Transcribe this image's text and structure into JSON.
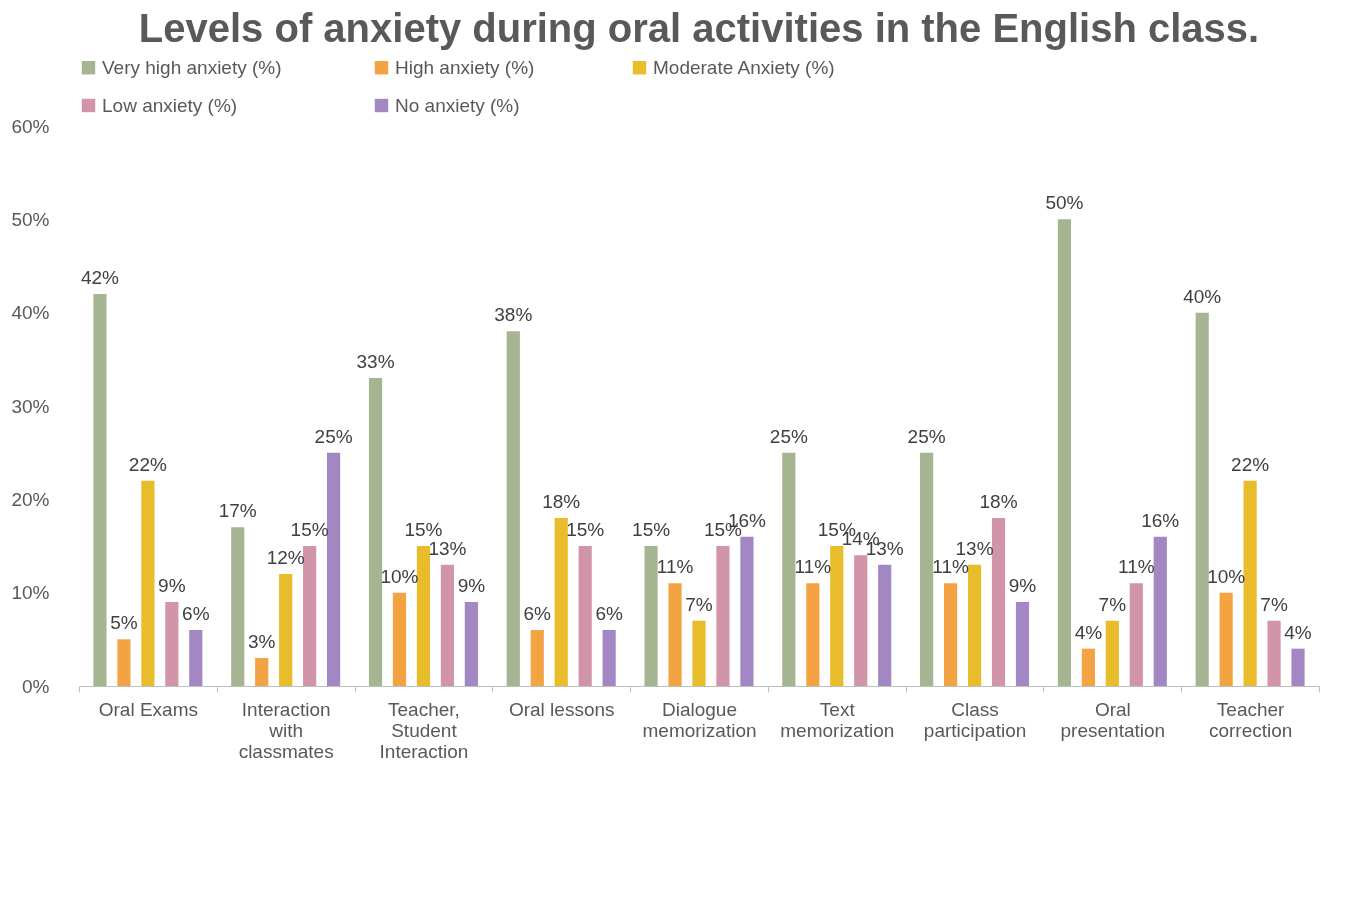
{
  "chart_data": {
    "type": "bar",
    "title": "Levels of anxiety during oral activities in the English class.",
    "categories": [
      "Oral Exams",
      "Interaction with classmates",
      "Teacher, Student Interaction",
      "Oral lessons",
      "Dialogue memorization",
      "Text memorization",
      "Class participation",
      "Oral presentation",
      "Teacher correction"
    ],
    "series": [
      {
        "name": "Very high anxiety (%)",
        "color": "#a5b592",
        "values": [
          42,
          17,
          33,
          38,
          15,
          25,
          25,
          50,
          40
        ],
        "value_labels": [
          "42%",
          "17%",
          "33%",
          "38%",
          "15%",
          "25%",
          "25%",
          "50%",
          "40%"
        ]
      },
      {
        "name": "High  anxiety (%)",
        "color": "#f4a343",
        "values": [
          5,
          3,
          10,
          6,
          11,
          11,
          11,
          4,
          10
        ],
        "value_labels": [
          "5%",
          "3%",
          "10%",
          "6%",
          "11%",
          "11%",
          "11%",
          "4%",
          "10%"
        ]
      },
      {
        "name": "Moderate Anxiety (%)",
        "color": "#e8bc2a",
        "values": [
          22,
          12,
          15,
          18,
          7,
          15,
          13,
          7,
          22
        ],
        "value_labels": [
          "22%",
          "12%",
          "15%",
          "18%",
          "7%",
          "15%",
          "13%",
          "7%",
          "22%"
        ]
      },
      {
        "name": "Low anxiety (%)",
        "color": "#d295a8",
        "values": [
          9,
          15,
          13,
          15,
          15,
          14,
          18,
          11,
          7
        ],
        "value_labels": [
          "9%",
          "15%",
          "13%",
          "15%",
          "15%",
          "14%",
          "18%",
          "11%",
          "7%"
        ]
      },
      {
        "name": "No anxiety (%)",
        "color": "#a387c3",
        "values": [
          6,
          25,
          9,
          6,
          16,
          13,
          9,
          16,
          4
        ],
        "value_labels": [
          "6%",
          "25%",
          "9%",
          "6%",
          "16%",
          "13%",
          "9%",
          "16%",
          "4%"
        ]
      }
    ],
    "ylim": [
      0,
      60
    ],
    "yticks": [
      {
        "value": 0,
        "label": "0%"
      },
      {
        "value": 10,
        "label": "10%"
      },
      {
        "value": 20,
        "label": "20%"
      },
      {
        "value": 30,
        "label": "30%"
      },
      {
        "value": 40,
        "label": "40%"
      },
      {
        "value": 50,
        "label": "50%"
      },
      {
        "value": 60,
        "label": "60%"
      }
    ],
    "legend": "top"
  }
}
